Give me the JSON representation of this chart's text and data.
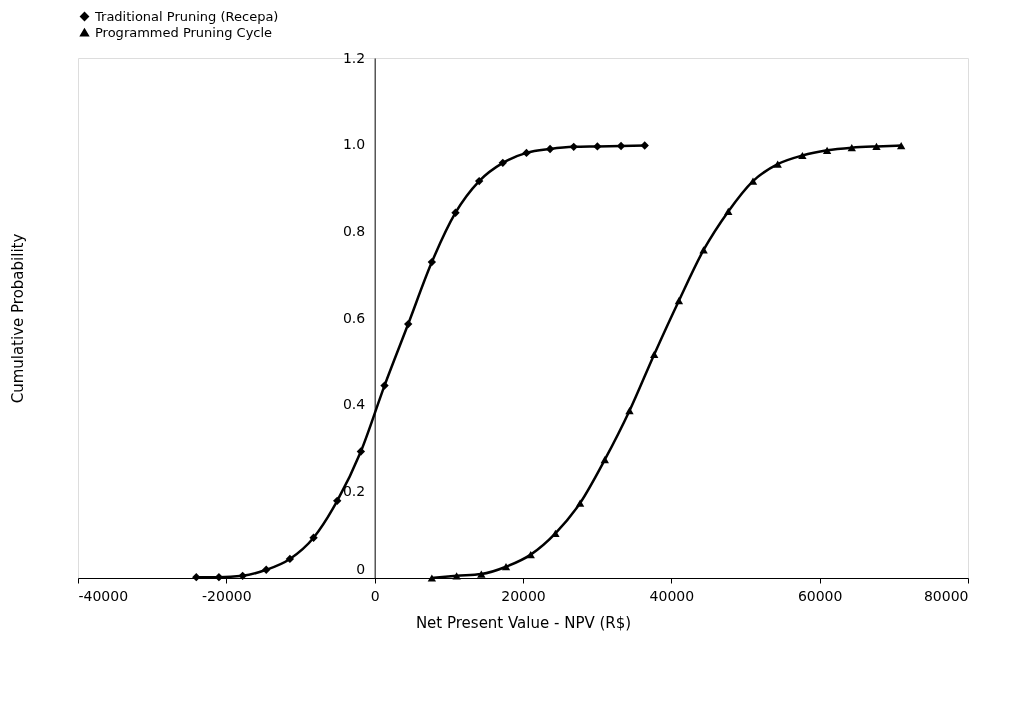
{
  "chart_data": {
    "type": "line",
    "xlabel": "Net Present Value - NPV (R$)",
    "ylabel": "Cumulative Probability",
    "xlim": [
      -40000,
      80000
    ],
    "xticks": [
      -40000,
      -20000,
      0,
      20000,
      40000,
      60000,
      80000
    ],
    "ylim": [
      0,
      1.2
    ],
    "yticks": [
      0,
      0.2,
      0.4,
      0.6,
      {
        "value": 0.8,
        "label": "0.8"
      },
      {
        "value": 1.0,
        "label": "1.0"
      },
      1.2
    ],
    "grid": false,
    "legend": "top",
    "line_style": "solid",
    "series": [
      {
        "name": "Traditional Pruning (Recepa)",
        "color": "#000000",
        "marker": "diamond",
        "x": [
          -24050,
          -21000,
          -17800,
          -14620,
          -11430,
          -8240,
          -5050,
          -1860,
          1330,
          4520,
          7710,
          10900,
          14090,
          17280,
          20470,
          23650,
          26840,
          30030,
          33220,
          36410
        ],
        "values": [
          0.002,
          0.002,
          0.005,
          0.019,
          0.044,
          0.093,
          0.178,
          0.292,
          0.444,
          0.586,
          0.729,
          0.843,
          0.916,
          0.958,
          0.981,
          0.99,
          0.995,
          0.996,
          0.997,
          0.998
        ]
      },
      {
        "name": "Programmed Pruning Cycle",
        "color": "#000000",
        "marker": "triangle",
        "x": [
          7710,
          11050,
          14380,
          17710,
          21040,
          24370,
          27700,
          31030,
          34360,
          37690,
          41020,
          44350,
          47680,
          51010,
          54340,
          57670,
          61000,
          64330,
          67660,
          70990
        ],
        "values": [
          0.0,
          0.005,
          0.009,
          0.026,
          0.054,
          0.103,
          0.173,
          0.273,
          0.386,
          0.516,
          0.64,
          0.757,
          0.846,
          0.916,
          0.955,
          0.975,
          0.987,
          0.993,
          0.996,
          0.998
        ]
      }
    ]
  }
}
